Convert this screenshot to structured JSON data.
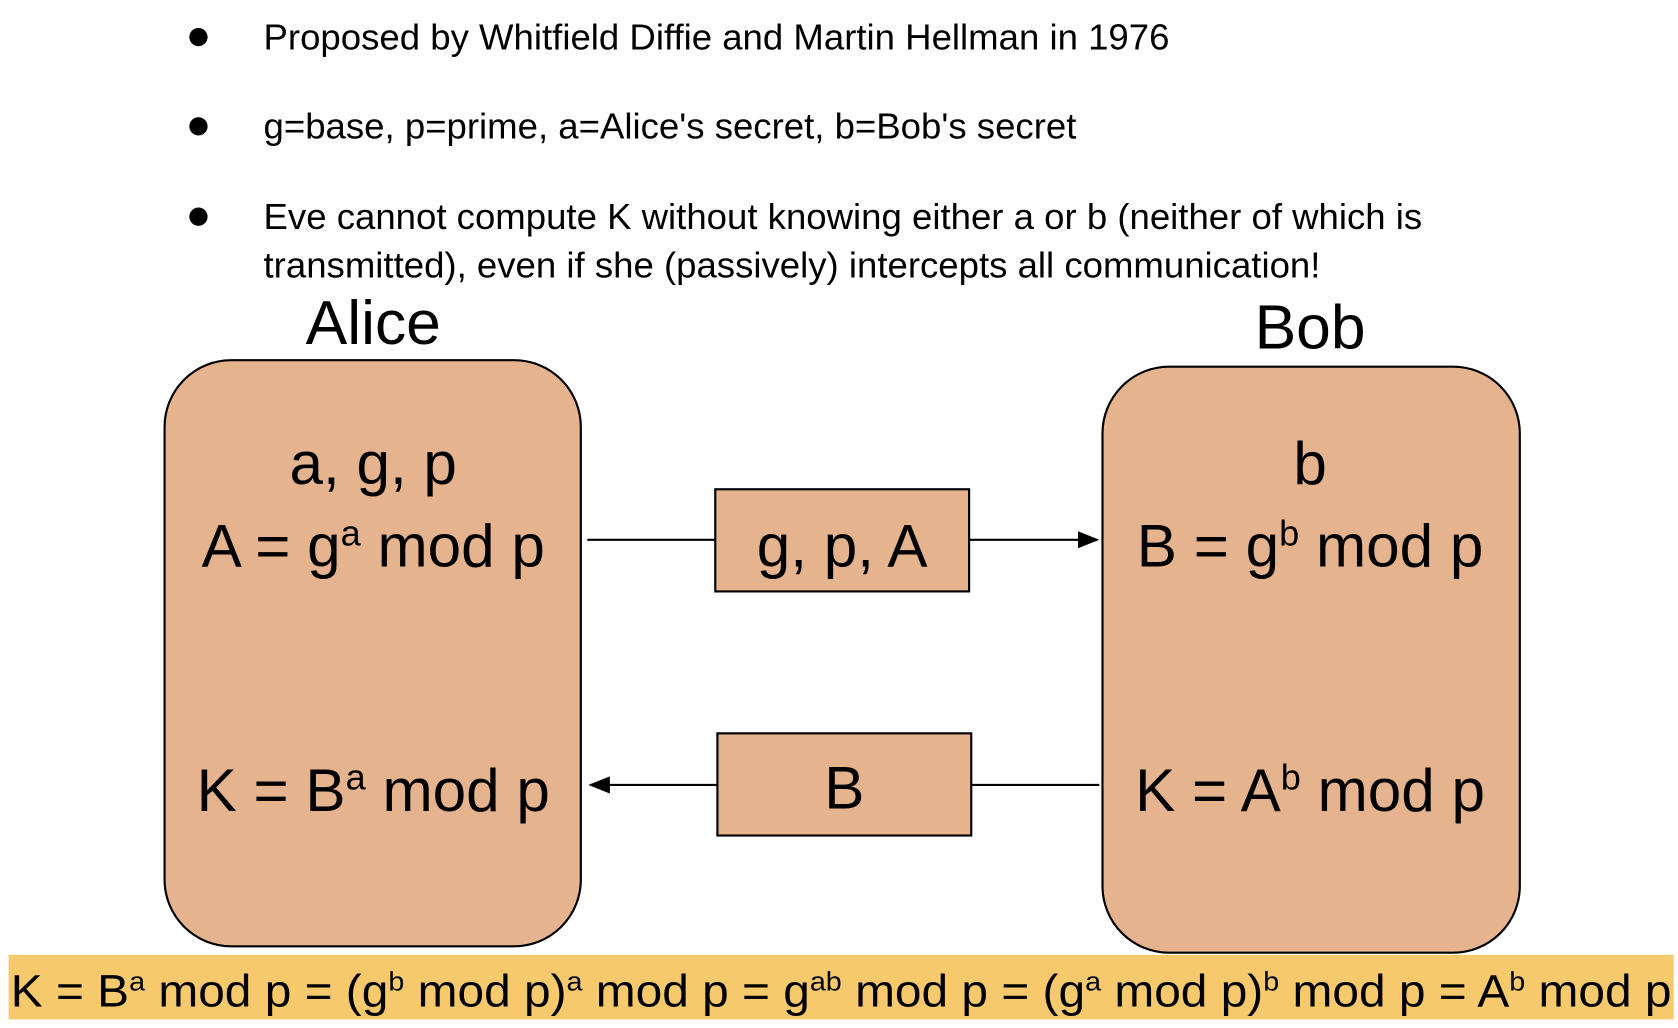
{
  "bullets": [
    "Proposed by Whitfield Diffie and Martin Hellman in 1976",
    "g=base, p=prime, a=Alice's secret, b=Bob's secret",
    "Eve cannot compute K without knowing either a or b (neither of which is transmitted), even if she (passively) intercepts all communication!"
  ],
  "alice": {
    "name": "Alice",
    "lines": [
      [
        {
          "text": "a, g, p"
        }
      ],
      [
        {
          "text": "A = g"
        },
        {
          "sup": "a"
        },
        {
          "text": " mod p"
        }
      ],
      [
        {
          "text": "K = B"
        },
        {
          "sup": "a"
        },
        {
          "text": " mod p"
        }
      ]
    ]
  },
  "bob": {
    "name": "Bob",
    "lines": [
      [
        {
          "text": "b"
        }
      ],
      [
        {
          "text": "B = g"
        },
        {
          "sup": "b"
        },
        {
          "text": " mod p"
        }
      ],
      [
        {
          "text": "K = A"
        },
        {
          "sup": "b"
        },
        {
          "text": " mod p"
        }
      ]
    ]
  },
  "messages": [
    {
      "label": "g, p, A"
    },
    {
      "label": "B"
    }
  ],
  "result": [
    {
      "text": "K = B"
    },
    {
      "sup": "a"
    },
    {
      "text": " mod p = (g"
    },
    {
      "sup": "b"
    },
    {
      "text": " mod p)"
    },
    {
      "sup": "a"
    },
    {
      "text": " mod p = g"
    },
    {
      "sup": "ab"
    },
    {
      "text": " mod p = (g"
    },
    {
      "sup": "a"
    },
    {
      "text": " mod p)"
    },
    {
      "sup": "b"
    },
    {
      "text": " mod p = A"
    },
    {
      "sup": "b"
    },
    {
      "text": " mod p"
    }
  ]
}
